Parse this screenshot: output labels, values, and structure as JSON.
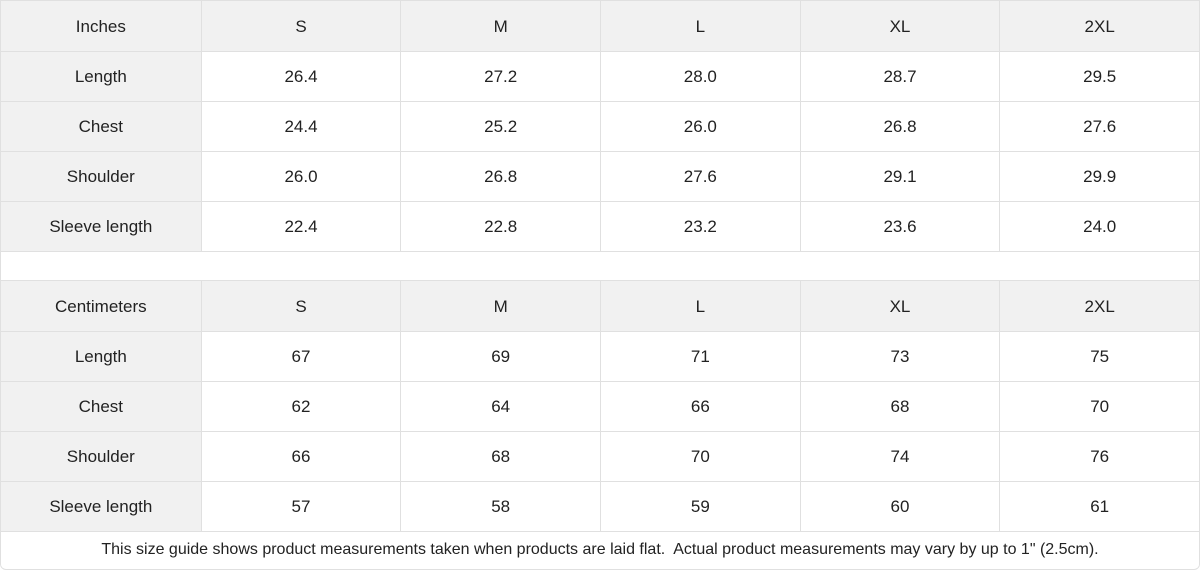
{
  "colors": {
    "header_cell_bg": "#f1f1f1",
    "border": "#e0e0e0",
    "text": "#222222",
    "background": "#ffffff"
  },
  "tables": [
    {
      "unit_label": "Inches",
      "sizes": [
        "S",
        "M",
        "L",
        "XL",
        "2XL"
      ],
      "rows": [
        {
          "label": "Length",
          "values": [
            "26.4",
            "27.2",
            "28.0",
            "28.7",
            "29.5"
          ]
        },
        {
          "label": "Chest",
          "values": [
            "24.4",
            "25.2",
            "26.0",
            "26.8",
            "27.6"
          ]
        },
        {
          "label": "Shoulder",
          "values": [
            "26.0",
            "26.8",
            "27.6",
            "29.1",
            "29.9"
          ]
        },
        {
          "label": "Sleeve length",
          "values": [
            "22.4",
            "22.8",
            "23.2",
            "23.6",
            "24.0"
          ]
        }
      ]
    },
    {
      "unit_label": "Centimeters",
      "sizes": [
        "S",
        "M",
        "L",
        "XL",
        "2XL"
      ],
      "rows": [
        {
          "label": "Length",
          "values": [
            "67",
            "69",
            "71",
            "73",
            "75"
          ]
        },
        {
          "label": "Chest",
          "values": [
            "62",
            "64",
            "66",
            "68",
            "70"
          ]
        },
        {
          "label": "Shoulder",
          "values": [
            "66",
            "68",
            "70",
            "74",
            "76"
          ]
        },
        {
          "label": "Sleeve length",
          "values": [
            "57",
            "58",
            "59",
            "60",
            "61"
          ]
        }
      ]
    }
  ],
  "footer": {
    "note": "This size guide shows product measurements taken when products are laid flat.  Actual product measurements may vary by up to 1\" (2.5cm)."
  }
}
